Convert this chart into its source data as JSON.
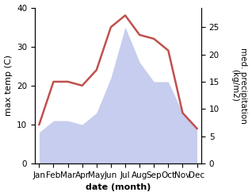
{
  "months": [
    "Jan",
    "Feb",
    "Mar",
    "Apr",
    "May",
    "Jun",
    "Jul",
    "Aug",
    "Sep",
    "Oct",
    "Nov",
    "Dec"
  ],
  "max_temp": [
    10,
    21,
    21,
    20,
    24,
    35,
    38,
    33,
    32,
    29,
    13,
    9
  ],
  "precipitation": [
    8,
    11,
    11,
    10,
    13,
    22,
    35,
    26,
    21,
    21,
    13,
    9
  ],
  "precip_right_scale": [
    0,
    5,
    10,
    15,
    20,
    25
  ],
  "precip_left_equiv": [
    0,
    7,
    14,
    21,
    28,
    35
  ],
  "temp_color": "#c0504d",
  "precip_fill_color": "#b0b8e8",
  "temp_ylim": [
    0,
    40
  ],
  "precip_ylim": [
    0,
    28.57
  ],
  "temp_yticks": [
    0,
    10,
    20,
    30,
    40
  ],
  "precip_yticks": [
    0,
    5,
    10,
    15,
    20,
    25
  ],
  "xlabel": "date (month)",
  "ylabel_left": "max temp (C)",
  "ylabel_right": "med. precipitation\n(kg/m2)",
  "label_fontsize": 8,
  "tick_fontsize": 7.5
}
